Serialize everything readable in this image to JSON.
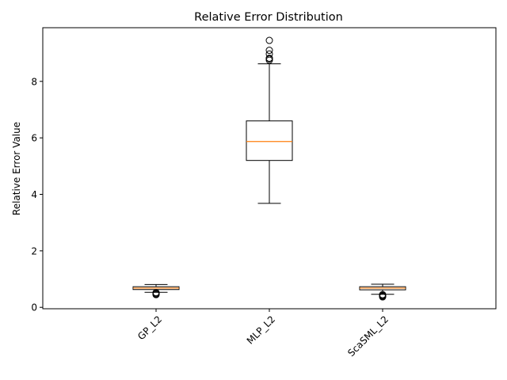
{
  "chart_data": {
    "type": "box",
    "title": "Relative Error Distribution",
    "xlabel": "",
    "ylabel": "Relative Error Value",
    "ylim": [
      -0.05,
      9.9
    ],
    "yticks": [
      0,
      2,
      4,
      6,
      8
    ],
    "grid": false,
    "colors": {
      "box": "#000000",
      "median": "#ff7f0e",
      "flier": "#000000"
    },
    "categories": [
      "GP_L2",
      "MLP_L2",
      "ScaSML_L2"
    ],
    "boxes": [
      {
        "name": "GP_L2",
        "whisker_low": 0.53,
        "q1": 0.63,
        "median": 0.68,
        "q3": 0.73,
        "whisker_high": 0.81,
        "fliers": [
          0.45,
          0.47,
          0.5,
          0.52
        ]
      },
      {
        "name": "MLP_L2",
        "whisker_low": 3.68,
        "q1": 5.2,
        "median": 5.87,
        "q3": 6.6,
        "whisker_high": 8.62,
        "fliers": [
          8.75,
          8.8,
          8.82,
          8.97,
          9.1,
          9.45
        ]
      },
      {
        "name": "ScaSML_L2",
        "whisker_low": 0.46,
        "q1": 0.62,
        "median": 0.68,
        "q3": 0.73,
        "whisker_high": 0.82,
        "fliers": [
          0.37,
          0.4,
          0.42,
          0.45
        ]
      }
    ]
  }
}
